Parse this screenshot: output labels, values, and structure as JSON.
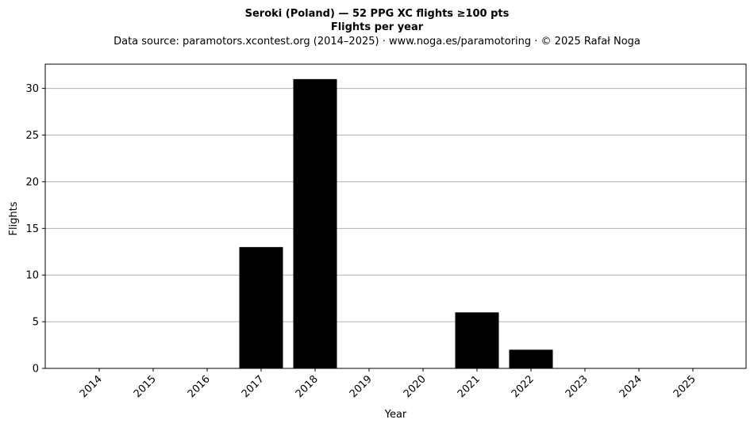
{
  "chart_data": {
    "type": "bar",
    "title": "Seroki (Poland)  —  52 PPG XC flights ≥100 pts",
    "title2": "Flights per year",
    "subtitle": "Data source: paramotors.xcontest.org (2014–2025)  ·  www.noga.es/paramotoring  ·  © 2025 Rafał Noga",
    "xlabel": "Year",
    "ylabel": "Flights",
    "categories": [
      "2014",
      "2015",
      "2016",
      "2017",
      "2018",
      "2019",
      "2020",
      "2021",
      "2022",
      "2023",
      "2024",
      "2025"
    ],
    "values": [
      0,
      0,
      0,
      13,
      31,
      0,
      0,
      6,
      2,
      0,
      0,
      0
    ],
    "ylim": [
      0,
      32.6
    ],
    "yticks": [
      0,
      5,
      10,
      15,
      20,
      25,
      30
    ],
    "grid": "y",
    "bar_color": "#000000",
    "grid_color": "#b0b0b0"
  }
}
